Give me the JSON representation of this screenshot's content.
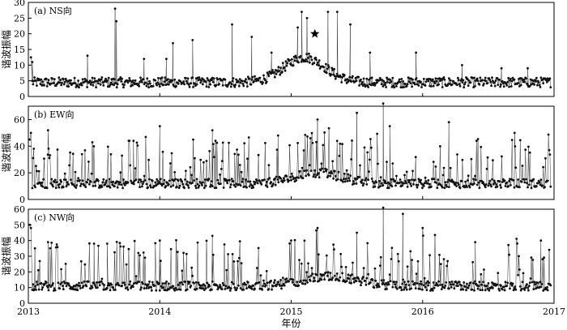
{
  "chart_data": [
    {
      "type": "line",
      "panel_label": "(a) NS向",
      "ylabel": "谐波振幅",
      "ylim": [
        0,
        30
      ],
      "yticks": [
        0,
        5,
        10,
        15,
        20,
        25,
        30
      ],
      "baseline": 4.5,
      "noise": 1.6,
      "hump_center": 2015.1,
      "hump_amp": 8,
      "hump_width": 0.22,
      "spikes": [
        [
          2013.02,
          12.5
        ],
        [
          2013.03,
          11
        ],
        [
          2013.45,
          13
        ],
        [
          2013.66,
          28
        ],
        [
          2013.67,
          24
        ],
        [
          2013.88,
          12
        ],
        [
          2014.05,
          12
        ],
        [
          2014.1,
          17
        ],
        [
          2014.25,
          18
        ],
        [
          2014.55,
          23
        ],
        [
          2014.7,
          19
        ],
        [
          2014.85,
          14
        ],
        [
          2015.05,
          22
        ],
        [
          2015.08,
          27
        ],
        [
          2015.12,
          25
        ],
        [
          2015.28,
          27
        ],
        [
          2015.35,
          27
        ],
        [
          2015.45,
          23
        ],
        [
          2015.6,
          14
        ],
        [
          2015.95,
          14
        ],
        [
          2016.3,
          10
        ],
        [
          2016.6,
          9
        ],
        [
          2016.8,
          9
        ]
      ],
      "star": {
        "x": 2015.18,
        "y": 20
      }
    },
    {
      "type": "line",
      "panel_label": "(b) EW向",
      "ylabel": "谐波振幅",
      "ylim": [
        0,
        70
      ],
      "yticks": [
        0,
        20,
        40,
        60
      ],
      "baseline": 12,
      "noise": 3.5,
      "hump_center": 2015.2,
      "hump_amp": 8,
      "hump_width": 0.25,
      "spike_prob": 0.22,
      "spike_max": 35,
      "spikes": [
        [
          2013.01,
          45
        ],
        [
          2013.02,
          50
        ],
        [
          2013.15,
          52
        ],
        [
          2013.8,
          44
        ],
        [
          2014.0,
          55
        ],
        [
          2014.4,
          52
        ],
        [
          2014.9,
          48
        ],
        [
          2015.2,
          60
        ],
        [
          2015.5,
          65
        ],
        [
          2015.7,
          72
        ],
        [
          2015.75,
          55
        ],
        [
          2016.2,
          58
        ],
        [
          2016.7,
          50
        ]
      ]
    },
    {
      "type": "line",
      "panel_label": "(c) NW向",
      "ylabel": "谐波振幅",
      "xlabel": "年份",
      "ylim": [
        0,
        60
      ],
      "yticks": [
        0,
        10,
        20,
        30,
        40,
        50,
        60
      ],
      "baseline": 11,
      "noise": 3,
      "hump_center": 2015.3,
      "hump_amp": 6,
      "hump_width": 0.3,
      "spike_prob": 0.22,
      "spike_max": 30,
      "spikes": [
        [
          2013.01,
          50
        ],
        [
          2013.02,
          48
        ],
        [
          2013.05,
          35
        ],
        [
          2013.15,
          39
        ],
        [
          2013.5,
          38
        ],
        [
          2013.6,
          38
        ],
        [
          2014.0,
          40
        ],
        [
          2014.4,
          43
        ],
        [
          2015.2,
          48
        ],
        [
          2015.5,
          45
        ],
        [
          2015.7,
          61
        ],
        [
          2015.85,
          57
        ],
        [
          2016.0,
          48
        ],
        [
          2016.4,
          39
        ],
        [
          2016.9,
          40
        ]
      ]
    }
  ],
  "x_axis": {
    "xlim": [
      2013,
      2017
    ],
    "xticks": [
      "2013",
      "2014",
      "2015",
      "2016",
      "2017"
    ]
  }
}
